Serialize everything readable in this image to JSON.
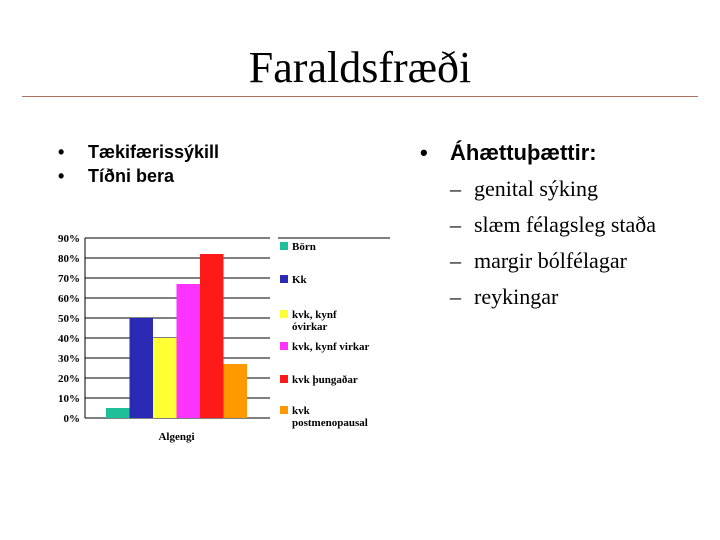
{
  "slide": {
    "title": "Faraldsfræði",
    "left_bullets": [
      "Tækifærissýkill",
      "Tíðni bera"
    ],
    "right_heading": "Áhættuþættir:",
    "right_items": [
      "genital sýking",
      "slæm félagsleg staða",
      "margir bólfélagar",
      "reykingar"
    ],
    "bullet_glyph": "•",
    "dash_glyph": "–"
  },
  "chart_data": {
    "type": "bar",
    "categories": [
      "Algengi"
    ],
    "series": [
      {
        "name": "Börn",
        "values": [
          5
        ],
        "color": "#1fbf99"
      },
      {
        "name": "Kk",
        "values": [
          50
        ],
        "color": "#2a2ab5"
      },
      {
        "name": "kvk, kynf óvirkar",
        "values": [
          40
        ],
        "color": "#ffff33"
      },
      {
        "name": "kvk, kynf virkar",
        "values": [
          67
        ],
        "color": "#ff33ff"
      },
      {
        "name": "kvk þungaðar",
        "values": [
          82
        ],
        "color": "#ff1a1a"
      },
      {
        "name": "kvk postmenopausal",
        "values": [
          27
        ],
        "color": "#ff9900"
      }
    ],
    "ylim": [
      0,
      90
    ],
    "yticks": [
      "0%",
      "10%",
      "20%",
      "30%",
      "40%",
      "50%",
      "60%",
      "70%",
      "80%",
      "90%"
    ],
    "grid": true,
    "legend": "right"
  }
}
